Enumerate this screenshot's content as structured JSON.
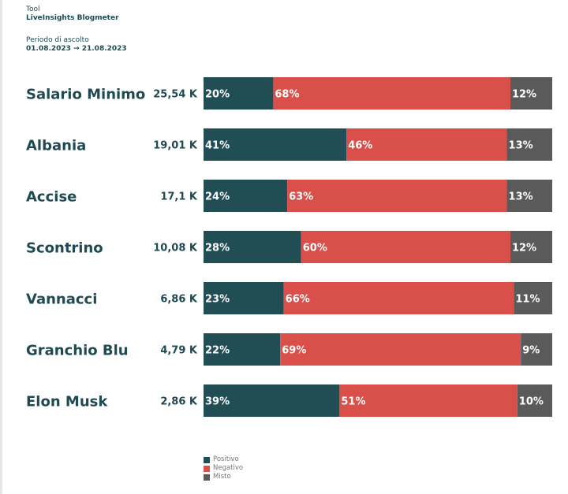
{
  "header": {
    "tool_label": "Tool",
    "tool_value": "LiveInsights Blogmeter",
    "period_label": "Periodo di ascolto",
    "period_value": "01.08.2023 → 21.08.2023"
  },
  "colors": {
    "positivo": "#214e55",
    "negativo": "#d9504a",
    "misto": "#5a5a5a",
    "text_dark": "#1f4a52"
  },
  "chart_data": {
    "type": "bar",
    "orientation": "horizontal",
    "stacked": true,
    "normalized": true,
    "categories": [
      "Salario Minimo",
      "Albania",
      "Accise",
      "Scontrino",
      "Vannacci",
      "Granchio Blu",
      "Elon Musk"
    ],
    "volumes": [
      "25,54 K",
      "19,01 K",
      "17,1 K",
      "10,08 K",
      "6,86 K",
      "4,79 K",
      "2,86 K"
    ],
    "series": [
      {
        "name": "Positivo",
        "values": [
          20,
          41,
          24,
          28,
          23,
          22,
          39
        ]
      },
      {
        "name": "Negativo",
        "values": [
          68,
          46,
          63,
          60,
          66,
          69,
          51
        ]
      },
      {
        "name": "Misto",
        "values": [
          12,
          13,
          13,
          12,
          11,
          9,
          10
        ]
      }
    ],
    "legend": [
      "Positivo",
      "Negativo",
      "Misto"
    ],
    "legend_position": "bottom",
    "grid": false
  }
}
